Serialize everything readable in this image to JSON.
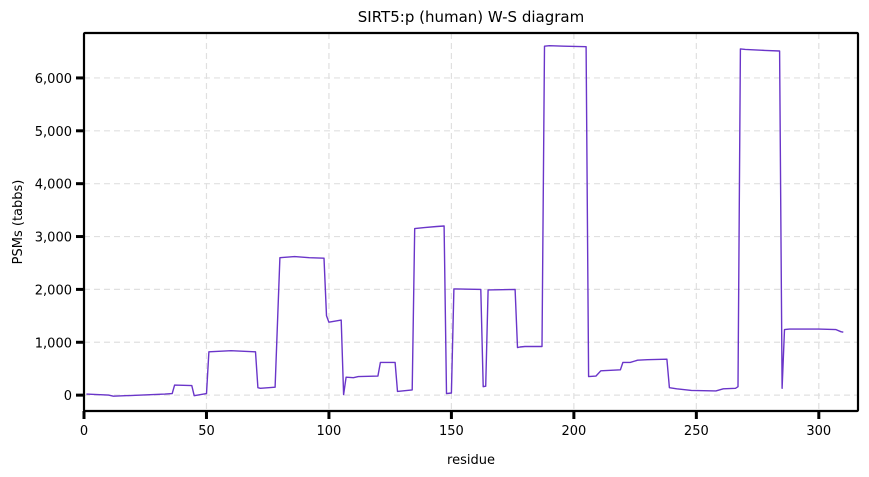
{
  "chart_data": {
    "type": "line",
    "title": "SIRT5:p (human) W-S diagram",
    "xlabel": "residue",
    "ylabel": "PSMs (tabbs)",
    "xlim": [
      0,
      316
    ],
    "ylim": [
      -300,
      6850
    ],
    "xticks": [
      0,
      50,
      100,
      150,
      200,
      250,
      300
    ],
    "xtick_labels": [
      "0",
      "50",
      "100",
      "150",
      "200",
      "250",
      "300"
    ],
    "yticks": [
      0,
      1000,
      2000,
      3000,
      4000,
      5000,
      6000
    ],
    "ytick_labels": [
      "0",
      "1,000",
      "2,000",
      "3,000",
      "4,000",
      "5,000",
      "6,000"
    ],
    "grid": true,
    "series": [
      {
        "color": "#6a35c9",
        "x": [
          1,
          10,
          12,
          33,
          36,
          37,
          44,
          45,
          50,
          51,
          55,
          60,
          70,
          71,
          72,
          78,
          80,
          86,
          92,
          98,
          99,
          100,
          105,
          106,
          107,
          110,
          112,
          120,
          121,
          127,
          128,
          130,
          134,
          135,
          139,
          144,
          147,
          148,
          150,
          151,
          152,
          162,
          163,
          164,
          165,
          176,
          177,
          178,
          180,
          187,
          188,
          190,
          196,
          205,
          206,
          209,
          211,
          219,
          220,
          223,
          226,
          230,
          238,
          239,
          242,
          248,
          258,
          261,
          266,
          267,
          268,
          270,
          278,
          284,
          285,
          286,
          288,
          300,
          307,
          309,
          310
        ],
        "y": [
          20,
          0,
          -20,
          20,
          30,
          190,
          180,
          -10,
          30,
          820,
          830,
          840,
          820,
          140,
          130,
          150,
          2600,
          2620,
          2600,
          2590,
          1500,
          1380,
          1420,
          10,
          340,
          330,
          350,
          360,
          620,
          620,
          70,
          80,
          100,
          3150,
          3170,
          3190,
          3200,
          30,
          40,
          2010,
          2010,
          2000,
          160,
          170,
          1990,
          2000,
          900,
          910,
          920,
          920,
          6600,
          6610,
          6600,
          6590,
          350,
          360,
          460,
          480,
          620,
          620,
          660,
          670,
          680,
          140,
          120,
          90,
          80,
          120,
          130,
          160,
          6550,
          6540,
          6520,
          6510,
          130,
          1240,
          1250,
          1250,
          1240,
          1200,
          1190
        ]
      }
    ]
  }
}
